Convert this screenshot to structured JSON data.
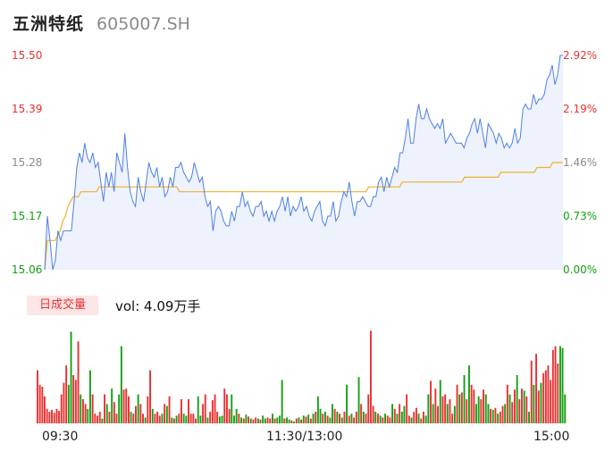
{
  "header": {
    "name": "五洲特纸",
    "code": "605007.SH"
  },
  "colors": {
    "up": "#e93030",
    "down": "#13a113",
    "neutral": "#8a8a8a",
    "price_line": "#4e80e6",
    "avg_line": "#f0b030",
    "area_fill": "#edf2fc"
  },
  "price_axis": {
    "labels": [
      "15.50",
      "15.39",
      "15.28",
      "15.17",
      "15.06"
    ]
  },
  "pct_axis": {
    "labels": [
      "2.92%",
      "2.19%",
      "1.46%",
      "0.73%",
      "0.00%"
    ]
  },
  "volume": {
    "tag": "日成交量",
    "info": "vol: 4.09万手"
  },
  "time_axis": {
    "labels": [
      "09:30",
      "11:30/13:00",
      "15:00"
    ]
  },
  "chart_data": {
    "type": "line",
    "title": "",
    "ylim": [
      15.06,
      15.5
    ],
    "x_range": [
      "09:30",
      "15:00"
    ],
    "series": [
      {
        "values": [
          15.06,
          15.17,
          15.12,
          15.06,
          15.08,
          15.14,
          15.12,
          15.14,
          15.14,
          15.14,
          15.14,
          15.2,
          15.27,
          15.3,
          15.28,
          15.32,
          15.29,
          15.28,
          15.3,
          15.27,
          15.28,
          15.24,
          15.2,
          15.26,
          15.23,
          15.26,
          15.22,
          15.3,
          15.28,
          15.26,
          15.34,
          15.27,
          15.22,
          15.2,
          15.19,
          15.25,
          15.22,
          15.2,
          15.24,
          15.28,
          15.26,
          15.25,
          15.27,
          15.23,
          15.25,
          15.21,
          15.22,
          15.25,
          15.23,
          15.27,
          15.27,
          15.28,
          15.26,
          15.25,
          15.24,
          15.25,
          15.28,
          15.26,
          15.24,
          15.25,
          15.21,
          15.19,
          15.2,
          15.14,
          15.18,
          15.19,
          15.18,
          15.16,
          15.15,
          15.15,
          15.18,
          15.16,
          15.19,
          15.19,
          15.22,
          15.19,
          15.2,
          15.18,
          15.17,
          15.19,
          15.19,
          15.2,
          15.17,
          15.18,
          15.16,
          15.18,
          15.16,
          15.18,
          15.19,
          15.21,
          15.18,
          15.21,
          15.17,
          15.19,
          15.18,
          15.19,
          15.21,
          15.18,
          15.19,
          15.17,
          15.16,
          15.18,
          15.19,
          15.2,
          15.16,
          15.15,
          15.17,
          15.17,
          15.2,
          15.16,
          15.17,
          15.2,
          15.22,
          15.21,
          15.24,
          15.2,
          15.17,
          15.2,
          15.2,
          15.21,
          15.2,
          15.19,
          15.19,
          15.21,
          15.21,
          15.24,
          15.25,
          15.22,
          15.25,
          15.23,
          15.25,
          15.27,
          15.26,
          15.3,
          15.3,
          15.33,
          15.37,
          15.32,
          15.32,
          15.37,
          15.4,
          15.37,
          15.37,
          15.39,
          15.37,
          15.36,
          15.35,
          15.36,
          15.35,
          15.37,
          15.32,
          15.33,
          15.34,
          15.33,
          15.32,
          15.32,
          15.32,
          15.31,
          15.33,
          15.34,
          15.36,
          15.37,
          15.34,
          15.37,
          15.34,
          15.31,
          15.36,
          15.35,
          15.34,
          15.32,
          15.34,
          15.33,
          15.31,
          15.32,
          15.31,
          15.32,
          15.35,
          15.32,
          15.33,
          15.39,
          15.4,
          15.39,
          15.39,
          15.42,
          15.4,
          15.41,
          15.41,
          15.42,
          15.45,
          15.46,
          15.48,
          15.44,
          15.46,
          15.5,
          15.5
        ]
      },
      {
        "values": [
          15.06,
          15.12,
          15.12,
          15.12,
          15.12,
          15.13,
          15.14,
          15.16,
          15.17,
          15.19,
          15.2,
          15.21,
          15.21,
          15.21,
          15.22,
          15.22,
          15.22,
          15.22,
          15.22,
          15.22,
          15.22,
          15.23,
          15.23,
          15.23,
          15.23,
          15.23,
          15.23,
          15.23,
          15.23,
          15.23,
          15.23,
          15.23,
          15.23,
          15.23,
          15.23,
          15.23,
          15.23,
          15.23,
          15.23,
          15.23,
          15.23,
          15.23,
          15.23,
          15.23,
          15.23,
          15.23,
          15.23,
          15.23,
          15.23,
          15.23,
          15.23,
          15.23,
          15.22,
          15.22,
          15.22,
          15.22,
          15.22,
          15.22,
          15.22,
          15.22,
          15.22,
          15.22,
          15.22,
          15.22,
          15.22,
          15.22,
          15.22,
          15.22,
          15.22,
          15.22,
          15.22,
          15.22,
          15.22,
          15.22,
          15.22,
          15.22,
          15.22,
          15.22,
          15.22,
          15.22,
          15.22,
          15.22,
          15.22,
          15.22,
          15.22,
          15.22,
          15.22,
          15.22,
          15.22,
          15.22,
          15.22,
          15.22,
          15.22,
          15.22,
          15.22,
          15.22,
          15.22,
          15.22,
          15.22,
          15.22,
          15.22,
          15.22,
          15.22,
          15.22,
          15.22,
          15.22,
          15.22,
          15.22,
          15.22,
          15.22,
          15.22,
          15.22,
          15.22,
          15.22,
          15.22,
          15.22,
          15.22,
          15.22,
          15.22,
          15.22,
          15.22,
          15.22,
          15.22,
          15.22,
          15.22,
          15.23,
          15.23,
          15.23,
          15.23,
          15.23,
          15.23,
          15.23,
          15.23,
          15.23,
          15.23,
          15.23,
          15.23,
          15.23,
          15.24,
          15.24,
          15.24,
          15.24,
          15.24,
          15.24,
          15.24,
          15.24,
          15.24,
          15.24,
          15.24,
          15.24,
          15.24,
          15.24,
          15.24,
          15.24,
          15.24,
          15.24,
          15.24,
          15.24,
          15.24,
          15.24,
          15.24,
          15.24,
          15.25,
          15.25,
          15.25,
          15.25,
          15.25,
          15.25,
          15.25,
          15.25,
          15.25,
          15.25,
          15.25,
          15.25,
          15.25,
          15.25,
          15.26,
          15.26,
          15.26,
          15.26,
          15.26,
          15.26,
          15.26,
          15.26,
          15.26,
          15.26,
          15.26,
          15.26,
          15.26,
          15.26,
          15.27,
          15.27,
          15.27,
          15.27,
          15.27,
          15.27,
          15.28,
          15.28,
          15.28,
          15.28,
          15.28
        ]
      }
    ],
    "volume_bars": {
      "values": [
        0.55,
        0.4,
        0.38,
        0.28,
        0.15,
        0.12,
        0.14,
        0.11,
        0.15,
        0.13,
        0.3,
        0.42,
        0.6,
        0.4,
        0.95,
        0.5,
        0.45,
        0.85,
        0.3,
        0.25,
        0.2,
        0.15,
        0.55,
        0.3,
        0.1,
        0.08,
        0.12,
        0.05,
        0.3,
        0.2,
        0.12,
        0.36,
        0.22,
        0.1,
        0.3,
        0.8,
        0.35,
        0.36,
        0.28,
        0.12,
        0.1,
        0.18,
        0.3,
        0.2,
        0.1,
        0.06,
        0.28,
        0.55,
        0.15,
        0.1,
        0.12,
        0.08,
        0.1,
        0.2,
        0.18,
        0.28,
        0.06,
        0.05,
        0.08,
        0.1,
        0.25,
        0.1,
        0.08,
        0.25,
        0.1,
        0.1,
        0.05,
        0.28,
        0.08,
        0.2,
        0.3,
        0.06,
        0.12,
        0.24,
        0.3,
        0.12,
        0.07,
        0.08,
        0.36,
        0.3,
        0.15,
        0.3,
        0.08,
        0.15,
        0.1,
        0.06,
        0.05,
        0.09,
        0.07,
        0.05,
        0.04,
        0.06,
        0.05,
        0.04,
        0.08,
        0.05,
        0.06,
        0.05,
        0.1,
        0.05,
        0.06,
        0.08,
        0.45,
        0.05,
        0.06,
        0.04,
        0.03,
        0.02,
        0.05,
        0.06,
        0.04,
        0.08,
        0.07,
        0.09,
        0.05,
        0.1,
        0.12,
        0.28,
        0.15,
        0.1,
        0.12,
        0.08,
        0.06,
        0.2,
        0.15,
        0.12,
        0.1,
        0.06,
        0.12,
        0.4,
        0.08,
        0.1,
        0.06,
        0.12,
        0.48,
        0.2,
        0.12,
        0.1,
        0.3,
        0.96,
        0.18,
        0.12,
        0.1,
        0.08,
        0.06,
        0.1,
        0.08,
        0.06,
        0.2,
        0.15,
        0.1,
        0.2,
        0.12,
        0.18,
        0.3,
        0.08,
        0.06,
        0.12,
        0.16,
        0.1,
        0.05,
        0.12,
        0.08,
        0.3,
        0.44,
        0.2,
        0.36,
        0.18,
        0.45,
        0.28,
        0.3,
        0.2,
        0.25,
        0.1,
        0.18,
        0.4,
        0.3,
        0.32,
        0.5,
        0.25,
        0.6,
        0.4,
        0.35,
        0.2,
        0.28,
        0.25,
        0.35,
        0.3,
        0.2,
        0.15,
        0.14,
        0.16,
        0.1,
        0.12,
        0.18,
        0.2,
        0.4,
        0.3,
        0.22,
        0.35,
        0.5,
        0.25,
        0.36,
        0.34,
        0.28,
        0.12,
        0.65,
        0.4,
        0.72,
        0.34,
        0.42,
        0.52,
        0.55,
        0.6,
        0.45,
        0.76,
        0.8,
        0.62,
        0.8,
        0.78,
        0.3
      ],
      "up": [
        1,
        1,
        1,
        1,
        1,
        1,
        1,
        1,
        1,
        1,
        1,
        1,
        1,
        0,
        0,
        1,
        1,
        1,
        0,
        1,
        1,
        0,
        0,
        1,
        1,
        1,
        1,
        0,
        1,
        0,
        1,
        0,
        1,
        1,
        0,
        0,
        1,
        1,
        1,
        0,
        1,
        1,
        0,
        1,
        1,
        0,
        1,
        1,
        0,
        1,
        1,
        1,
        0,
        1,
        0,
        1,
        0,
        1,
        0,
        1,
        1,
        0,
        0,
        1,
        1,
        1,
        1,
        0,
        0,
        1,
        1,
        0,
        1,
        1,
        1,
        1,
        0,
        0,
        1,
        1,
        1,
        0,
        0,
        0,
        1,
        0,
        1,
        0,
        1,
        0,
        1,
        1,
        0,
        1,
        0,
        0,
        1,
        1,
        0,
        1,
        0,
        0,
        0,
        1,
        0,
        0,
        1,
        0,
        1,
        0,
        1,
        0,
        1,
        0,
        1,
        0,
        1,
        0,
        0,
        1,
        0,
        1,
        0,
        0,
        1,
        0,
        1,
        0,
        1,
        0,
        1,
        0,
        1,
        1,
        0,
        1,
        0,
        1,
        1,
        1,
        1,
        0,
        1,
        0,
        1,
        0,
        1,
        1,
        0,
        1,
        0,
        1,
        0,
        0,
        1,
        1,
        0,
        1,
        1,
        0,
        1,
        1,
        0,
        0,
        1,
        0,
        1,
        1,
        0,
        1,
        1,
        0,
        1,
        1,
        0,
        1,
        0,
        1,
        0,
        1,
        0,
        1,
        1,
        0,
        0,
        1,
        1,
        0,
        0,
        1,
        0,
        1,
        0,
        1,
        1,
        0,
        1,
        0,
        1,
        1,
        0,
        1,
        1,
        0,
        1,
        0,
        1,
        0,
        1,
        1,
        0,
        1,
        1,
        1,
        1,
        1,
        1,
        1
      ]
    }
  }
}
